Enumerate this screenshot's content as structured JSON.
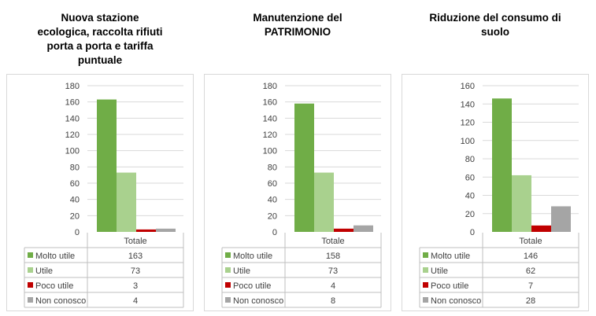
{
  "chart_data": [
    {
      "type": "bar",
      "title_lines": [
        "Nuova stazione",
        "ecologica, raccolta rifiuti",
        "porta a porta e tariffa",
        "puntuale"
      ],
      "categories": [
        "Totale"
      ],
      "ylim": [
        0,
        180
      ],
      "yticks": [
        0,
        20,
        40,
        60,
        80,
        100,
        120,
        140,
        160,
        180
      ],
      "grid": true,
      "series": [
        {
          "name": "Molto utile",
          "values": [
            163
          ],
          "color": "#70ad47"
        },
        {
          "name": "Utile",
          "values": [
            73
          ],
          "color": "#a9d18e"
        },
        {
          "name": "Poco utile",
          "values": [
            3
          ],
          "color": "#c00000"
        },
        {
          "name": "Non conosco",
          "values": [
            4
          ],
          "color": "#a5a5a5"
        }
      ]
    },
    {
      "type": "bar",
      "title_lines": [
        "Manutenzione del",
        "PATRIMONIO"
      ],
      "categories": [
        "Totale"
      ],
      "ylim": [
        0,
        180
      ],
      "yticks": [
        0,
        20,
        40,
        60,
        80,
        100,
        120,
        140,
        160,
        180
      ],
      "grid": true,
      "series": [
        {
          "name": "Molto utile",
          "values": [
            158
          ],
          "color": "#70ad47"
        },
        {
          "name": "Utile",
          "values": [
            73
          ],
          "color": "#a9d18e"
        },
        {
          "name": "Poco utile",
          "values": [
            4
          ],
          "color": "#c00000"
        },
        {
          "name": "Non conosco",
          "values": [
            8
          ],
          "color": "#a5a5a5"
        }
      ]
    },
    {
      "type": "bar",
      "title_lines": [
        "Riduzione del consumo di",
        "suolo"
      ],
      "categories": [
        "Totale"
      ],
      "ylim": [
        0,
        160
      ],
      "yticks": [
        0,
        20,
        40,
        60,
        80,
        100,
        120,
        140,
        160
      ],
      "grid": true,
      "series": [
        {
          "name": "Molto utile",
          "values": [
            146
          ],
          "color": "#70ad47"
        },
        {
          "name": "Utile",
          "values": [
            62
          ],
          "color": "#a9d18e"
        },
        {
          "name": "Poco utile",
          "values": [
            7
          ],
          "color": "#c00000"
        },
        {
          "name": "Non conosco",
          "values": [
            28
          ],
          "color": "#a5a5a5"
        }
      ]
    }
  ]
}
